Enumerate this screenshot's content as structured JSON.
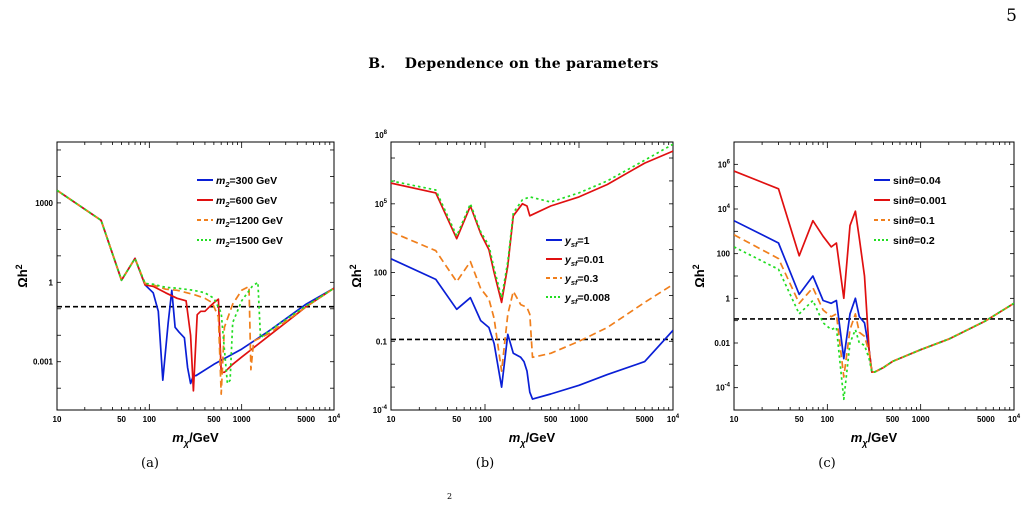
{
  "page_number": "5",
  "section": {
    "letter": "B.",
    "title": "Dependence on the parameters"
  },
  "footer_fragment": "2",
  "colors": {
    "blue": "#0a1fd6",
    "red": "#e01010",
    "orange": "#f07f1c",
    "green": "#22dd22",
    "reference_line": "#000000"
  },
  "chart_data": [
    {
      "type": "line",
      "caption": "(a)",
      "xlabel_main": "m",
      "xlabel_sub": "χ",
      "xlabel_unit": "/GeV",
      "ylabel_main": "Ωh",
      "ylabel_sup": "2",
      "xscale": "log",
      "yscale": "log",
      "xlim": [
        10,
        10000
      ],
      "ylim": [
        1.5e-05,
        200000
      ],
      "x_ticks": [
        {
          "v": 10,
          "label": "10"
        },
        {
          "v": 50,
          "label": "50"
        },
        {
          "v": 100,
          "label": "100"
        },
        {
          "v": 500,
          "label": "500"
        },
        {
          "v": 1000,
          "label": "1000"
        },
        {
          "v": 5000,
          "label": "5000"
        },
        {
          "v": 10000,
          "label": "10",
          "sup": "4"
        }
      ],
      "y_ticks": [
        {
          "v": 0.001,
          "label": "0.001"
        },
        {
          "v": 1,
          "label": "1"
        },
        {
          "v": 1000,
          "label": "1000"
        }
      ],
      "reference_line_y": 0.12,
      "legend_position": "top-right",
      "series": [
        {
          "name_main": "m",
          "name_sub": "2",
          "name_rest": "=300 GeV",
          "color": "#0a1fd6",
          "dash": "solid",
          "x": [
            10,
            30,
            50,
            70,
            90,
            110,
            125,
            140,
            160,
            175,
            190,
            210,
            240,
            260,
            280,
            300,
            320,
            500,
            1000,
            2000,
            5000,
            10000
          ],
          "y": [
            3000,
            220,
            1.2,
            8,
            0.8,
            0.4,
            0.08,
            0.0002,
            0.03,
            0.5,
            0.02,
            0.013,
            0.008,
            0.0006,
            0.00015,
            0.0003,
            0.0003,
            0.0008,
            0.003,
            0.015,
            0.15,
            0.6
          ]
        },
        {
          "name_main": "m",
          "name_sub": "2",
          "name_rest": "=600 GeV",
          "color": "#e01010",
          "dash": "solid",
          "x": [
            10,
            30,
            50,
            70,
            90,
            110,
            150,
            200,
            250,
            280,
            300,
            330,
            360,
            400,
            450,
            500,
            560,
            600,
            650,
            800,
            1000,
            2000,
            5000,
            10000
          ],
          "y": [
            3000,
            220,
            1.2,
            8,
            0.8,
            0.7,
            0.4,
            0.25,
            0.2,
            0.01,
            8e-05,
            0.06,
            0.08,
            0.08,
            0.12,
            0.17,
            0.23,
            0.0004,
            0.0004,
            0.0008,
            0.0015,
            0.01,
            0.12,
            0.6
          ]
        },
        {
          "name_main": "m",
          "name_sub": "2",
          "name_rest": "=1200 GeV",
          "color": "#f07f1c",
          "dash": "dash",
          "x": [
            10,
            30,
            50,
            70,
            90,
            110,
            150,
            200,
            300,
            400,
            480,
            560,
            600,
            650,
            800,
            1000,
            1200,
            1260,
            1350,
            2000,
            5000,
            10000
          ],
          "y": [
            3000,
            220,
            1.2,
            8,
            0.9,
            0.8,
            0.55,
            0.5,
            0.35,
            0.25,
            0.17,
            0.05,
            6e-05,
            0.02,
            0.15,
            0.5,
            0.7,
            0.0005,
            0.006,
            0.012,
            0.12,
            0.6
          ]
        },
        {
          "name_main": "m",
          "name_sub": "2",
          "name_rest": "=1500 GeV",
          "color": "#22dd22",
          "dash": "dot",
          "x": [
            10,
            30,
            50,
            70,
            90,
            110,
            150,
            200,
            300,
            400,
            500,
            600,
            700,
            750,
            800,
            1000,
            1300,
            1500,
            1600,
            2000,
            5000,
            10000
          ],
          "y": [
            3000,
            220,
            1.2,
            8,
            0.9,
            0.85,
            0.65,
            0.6,
            0.5,
            0.4,
            0.25,
            0.07,
            0.00015,
            0.0002,
            0.03,
            0.2,
            0.7,
            1.0,
            0.008,
            0.015,
            0.13,
            0.6
          ]
        }
      ]
    },
    {
      "type": "line",
      "caption": "(b)",
      "xlabel_main": "m",
      "xlabel_sub": "χ",
      "xlabel_unit": "/GeV",
      "ylabel_main": "Ωh",
      "ylabel_sup": "2",
      "xscale": "log",
      "yscale": "log",
      "xlim": [
        10,
        10000
      ],
      "ylim": [
        0.0001,
        50000000
      ],
      "x_ticks": [
        {
          "v": 10,
          "label": "10"
        },
        {
          "v": 50,
          "label": "50"
        },
        {
          "v": 100,
          "label": "100"
        },
        {
          "v": 500,
          "label": "500"
        },
        {
          "v": 1000,
          "label": "1000"
        },
        {
          "v": 5000,
          "label": "5000"
        },
        {
          "v": 10000,
          "label": "10",
          "sup": "4"
        }
      ],
      "y_ticks": [
        {
          "v": 0.0001,
          "label": "10",
          "sup": "-4"
        },
        {
          "v": 0.1,
          "label": "0.1"
        },
        {
          "v": 100,
          "label": "100"
        },
        {
          "v": 100000,
          "label": "10",
          "sup": "5"
        },
        {
          "v": 100000000,
          "label": "10",
          "sup": "8"
        }
      ],
      "reference_line_y": 0.12,
      "legend_position": "center-right",
      "series": [
        {
          "name_main": "y",
          "name_sub": "sf",
          "name_rest": "=1",
          "color": "#0a1fd6",
          "dash": "solid",
          "x": [
            10,
            30,
            50,
            70,
            90,
            110,
            125,
            150,
            175,
            200,
            240,
            260,
            280,
            300,
            320,
            500,
            1000,
            2000,
            5000,
            10000
          ],
          "y": [
            400,
            50,
            2.5,
            8,
            0.8,
            0.4,
            0.08,
            0.001,
            0.2,
            0.03,
            0.02,
            0.013,
            0.005,
            0.0006,
            0.0003,
            0.0005,
            0.0012,
            0.0035,
            0.013,
            0.3
          ]
        },
        {
          "name_main": "y",
          "name_sub": "sf",
          "name_rest": "=0.01",
          "color": "#e01010",
          "dash": "solid",
          "x": [
            10,
            30,
            50,
            70,
            90,
            110,
            125,
            150,
            175,
            200,
            250,
            280,
            300,
            500,
            1000,
            2000,
            5000,
            10000
          ],
          "y": [
            800000,
            300000,
            3000,
            80000,
            5000,
            1000,
            100,
            5,
            200,
            30000,
            100000,
            80000,
            30000,
            80000,
            200000,
            700000,
            6000000,
            20000000
          ]
        },
        {
          "name_main": "y",
          "name_sub": "sf",
          "name_rest": "=0.3",
          "color": "#f07f1c",
          "dash": "dash",
          "x": [
            10,
            30,
            50,
            70,
            90,
            110,
            125,
            150,
            175,
            200,
            240,
            280,
            300,
            320,
            500,
            1000,
            2000,
            5000,
            10000
          ],
          "y": [
            6000,
            900,
            40,
            300,
            20,
            7,
            1,
            0.005,
            1.5,
            15,
            4,
            3,
            1.5,
            0.02,
            0.03,
            0.1,
            0.4,
            5,
            30
          ]
        },
        {
          "name_main": "y",
          "name_sub": "sf",
          "name_rest": "=0.008",
          "color": "#22dd22",
          "dash": "dot",
          "x": [
            10,
            30,
            50,
            70,
            90,
            110,
            125,
            150,
            175,
            200,
            250,
            300,
            500,
            1000,
            2000,
            5000,
            10000
          ],
          "y": [
            1000000,
            400000,
            4000,
            100000,
            6000,
            1500,
            150,
            8,
            300,
            40000,
            150000,
            200000,
            120000,
            300000,
            1000000,
            8000000,
            40000000
          ]
        }
      ]
    },
    {
      "type": "line",
      "caption": "(c)",
      "xlabel_main": "m",
      "xlabel_sub": "χ",
      "xlabel_unit": "/GeV",
      "ylabel_main": "Ωh",
      "ylabel_sup": "2",
      "xscale": "log",
      "yscale": "log",
      "xlim": [
        10,
        10000
      ],
      "ylim": [
        1e-05,
        10000000
      ],
      "x_ticks": [
        {
          "v": 10,
          "label": "10"
        },
        {
          "v": 50,
          "label": "50"
        },
        {
          "v": 100,
          "label": "100"
        },
        {
          "v": 500,
          "label": "500"
        },
        {
          "v": 1000,
          "label": "1000"
        },
        {
          "v": 5000,
          "label": "5000"
        },
        {
          "v": 10000,
          "label": "10",
          "sup": "4"
        }
      ],
      "y_ticks": [
        {
          "v": 0.0001,
          "label": "10",
          "sup": "-4"
        },
        {
          "v": 0.01,
          "label": "0.01"
        },
        {
          "v": 1,
          "label": "1"
        },
        {
          "v": 100,
          "label": "100"
        },
        {
          "v": 10000,
          "label": "10",
          "sup": "4"
        },
        {
          "v": 1000000,
          "label": "10",
          "sup": "6"
        }
      ],
      "reference_line_y": 0.12,
      "legend_position": "top-right",
      "series": [
        {
          "name_main": "sin",
          "name_theta": "θ",
          "name_rest": "=0.04",
          "color": "#0a1fd6",
          "dash": "solid",
          "x": [
            10,
            30,
            50,
            70,
            90,
            110,
            125,
            150,
            175,
            200,
            220,
            250,
            280,
            300,
            320,
            400,
            500,
            1000,
            2000,
            5000,
            10000
          ],
          "y": [
            3000,
            300,
            1.5,
            10,
            0.8,
            0.6,
            0.8,
            0.002,
            0.2,
            1.0,
            0.15,
            0.08,
            0.005,
            0.0005,
            0.0005,
            0.0008,
            0.0015,
            0.005,
            0.015,
            0.1,
            0.6
          ]
        },
        {
          "name_main": "sin",
          "name_theta": "θ",
          "name_rest": "=0.001",
          "color": "#e01010",
          "dash": "solid",
          "x": [
            10,
            30,
            50,
            70,
            90,
            110,
            125,
            150,
            175,
            200,
            220,
            250,
            280,
            300,
            320,
            400,
            500,
            1000,
            2000,
            5000,
            10000
          ],
          "y": [
            500000,
            80000,
            80,
            3000,
            600,
            200,
            300,
            1,
            1800,
            8000,
            500,
            10,
            0.005,
            0.0005,
            0.0005,
            0.0008,
            0.0015,
            0.005,
            0.015,
            0.1,
            0.6
          ]
        },
        {
          "name_main": "sin",
          "name_theta": "θ",
          "name_rest": "=0.1",
          "color": "#f07f1c",
          "dash": "dash",
          "x": [
            10,
            30,
            50,
            70,
            90,
            110,
            125,
            150,
            175,
            200,
            220,
            250,
            280,
            300,
            320,
            400,
            500,
            1000,
            2000,
            5000,
            10000
          ],
          "y": [
            700,
            60,
            0.6,
            3,
            0.3,
            0.15,
            0.2,
            0.0003,
            0.04,
            0.2,
            0.03,
            0.02,
            0.004,
            0.0005,
            0.0005,
            0.0008,
            0.0015,
            0.005,
            0.015,
            0.1,
            0.6
          ]
        },
        {
          "name_main": "sin",
          "name_theta": "θ",
          "name_rest": "=0.2",
          "color": "#22dd22",
          "dash": "dot",
          "x": [
            10,
            30,
            50,
            70,
            90,
            110,
            125,
            150,
            175,
            200,
            220,
            250,
            280,
            300,
            320,
            400,
            500,
            1000,
            2000,
            5000,
            10000
          ],
          "y": [
            200,
            20,
            0.2,
            0.8,
            0.08,
            0.04,
            0.05,
            3e-05,
            0.01,
            0.04,
            0.01,
            0.008,
            0.002,
            0.0005,
            0.0005,
            0.0008,
            0.0015,
            0.005,
            0.015,
            0.1,
            0.6
          ]
        }
      ]
    }
  ]
}
